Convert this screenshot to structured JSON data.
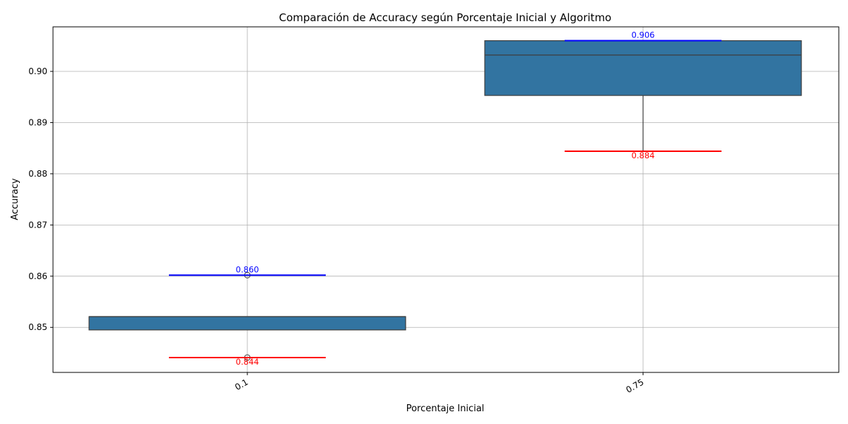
{
  "chart_data": {
    "type": "box",
    "title": "Comparación de Accuracy según Porcentaje Inicial y Algoritmo",
    "xlabel": "Porcentaje Inicial",
    "ylabel": "Accuracy",
    "categories": [
      "0.1",
      "0.75"
    ],
    "ylim": [
      0.8412,
      0.9087
    ],
    "yticks": [
      0.85,
      0.86,
      0.87,
      0.88,
      0.89,
      0.9
    ],
    "ytick_labels": [
      "0.85",
      "0.86",
      "0.87",
      "0.88",
      "0.89",
      "0.90"
    ],
    "grid": true,
    "boxes": [
      {
        "category": "0.1",
        "q1": 0.8495,
        "median": 0.8521,
        "q3": 0.8521,
        "whisker_low": 0.8495,
        "whisker_high": 0.8521,
        "fliers": [
          0.8602,
          0.8441
        ]
      },
      {
        "category": "0.75",
        "q1": 0.8953,
        "median": 0.9032,
        "q3": 0.906,
        "whisker_low": 0.8844,
        "whisker_high": 0.906,
        "fliers": []
      }
    ],
    "reference_lines": [
      {
        "category": "0.1",
        "kind": "max",
        "value": 0.8602,
        "label": "0.860",
        "color": "#0000ff"
      },
      {
        "category": "0.1",
        "kind": "min",
        "value": 0.8441,
        "label": "0.844",
        "color": "#ff0000"
      },
      {
        "category": "0.75",
        "kind": "max",
        "value": 0.906,
        "label": "0.906",
        "color": "#0000ff"
      },
      {
        "category": "0.75",
        "kind": "min",
        "value": 0.8844,
        "label": "0.884",
        "color": "#ff0000"
      }
    ],
    "colors": {
      "box": "#3274a1",
      "edge": "#3d3d3d",
      "max_line": "#0000ff",
      "min_line": "#ff0000"
    }
  }
}
